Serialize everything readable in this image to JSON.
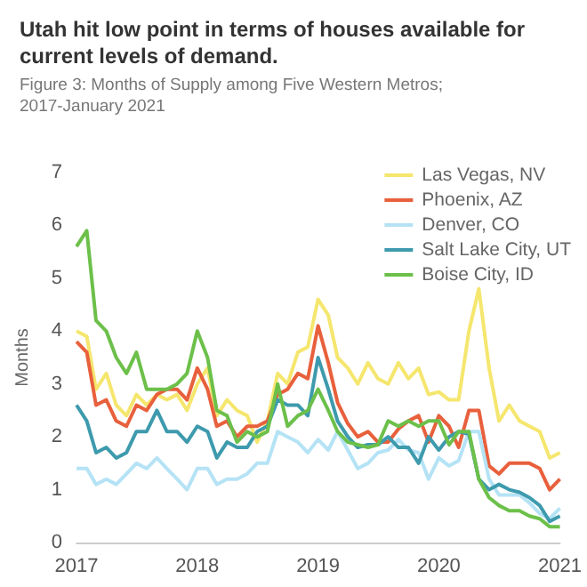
{
  "chart_data": {
    "type": "line",
    "title": "Utah hit low point in terms of houses available for current levels of demand.",
    "subtitle": "Figure 3: Months of Supply among Five Western Metros; 2017-January 2021",
    "ylabel": "Months",
    "x": [
      "2017-01",
      "2017-02",
      "2017-03",
      "2017-04",
      "2017-05",
      "2017-06",
      "2017-07",
      "2017-08",
      "2017-09",
      "2017-10",
      "2017-11",
      "2017-12",
      "2018-01",
      "2018-02",
      "2018-03",
      "2018-04",
      "2018-05",
      "2018-06",
      "2018-07",
      "2018-08",
      "2018-09",
      "2018-10",
      "2018-11",
      "2018-12",
      "2019-01",
      "2019-02",
      "2019-03",
      "2019-04",
      "2019-05",
      "2019-06",
      "2019-07",
      "2019-08",
      "2019-09",
      "2019-10",
      "2019-11",
      "2019-12",
      "2020-01",
      "2020-02",
      "2020-03",
      "2020-04",
      "2020-05",
      "2020-06",
      "2020-07",
      "2020-08",
      "2020-09",
      "2020-10",
      "2020-11",
      "2020-12",
      "2021-01"
    ],
    "series": [
      {
        "name": "Las Vegas, NV",
        "color": "#f5e66e",
        "values": [
          4.0,
          3.9,
          2.9,
          3.2,
          2.6,
          2.4,
          2.8,
          2.6,
          2.8,
          2.7,
          2.8,
          2.5,
          3.0,
          3.3,
          2.4,
          2.7,
          2.5,
          2.4,
          1.9,
          2.3,
          3.2,
          3.0,
          3.6,
          3.7,
          4.6,
          4.3,
          3.5,
          3.3,
          3.0,
          3.4,
          3.1,
          3.0,
          3.4,
          3.1,
          3.3,
          2.8,
          2.85,
          2.7,
          2.7,
          4.0,
          4.8,
          3.3,
          2.3,
          2.6,
          2.3,
          2.2,
          2.1,
          1.6,
          1.7
        ]
      },
      {
        "name": "Phoenix, AZ",
        "color": "#e8603c",
        "values": [
          3.8,
          3.6,
          2.6,
          2.7,
          2.3,
          2.2,
          2.6,
          2.5,
          2.8,
          2.9,
          2.9,
          2.7,
          3.3,
          2.9,
          2.2,
          2.3,
          2.0,
          2.2,
          2.2,
          2.3,
          2.8,
          2.9,
          3.2,
          3.1,
          4.1,
          3.4,
          2.65,
          2.25,
          2.0,
          2.1,
          1.9,
          1.9,
          2.15,
          2.3,
          2.4,
          1.9,
          2.4,
          2.2,
          1.8,
          2.5,
          2.5,
          1.45,
          1.3,
          1.5,
          1.5,
          1.5,
          1.4,
          1.0,
          1.2
        ]
      },
      {
        "name": "Denver, CO",
        "color": "#b5e3f5",
        "values": [
          1.4,
          1.4,
          1.1,
          1.2,
          1.1,
          1.3,
          1.5,
          1.4,
          1.6,
          1.4,
          1.2,
          1.0,
          1.4,
          1.4,
          1.1,
          1.2,
          1.2,
          1.3,
          1.5,
          1.5,
          2.1,
          2.0,
          1.9,
          1.7,
          1.95,
          1.75,
          2.1,
          1.75,
          1.4,
          1.5,
          1.7,
          1.75,
          1.95,
          1.75,
          1.7,
          1.2,
          1.6,
          1.45,
          1.55,
          2.1,
          2.1,
          1.2,
          0.9,
          0.9,
          0.9,
          0.75,
          0.55,
          0.45,
          0.65
        ]
      },
      {
        "name": "Salt Lake City, UT",
        "color": "#3e9aad",
        "values": [
          2.6,
          2.3,
          1.7,
          1.8,
          1.6,
          1.7,
          2.1,
          2.1,
          2.5,
          2.1,
          2.1,
          1.9,
          2.2,
          2.1,
          1.6,
          1.9,
          1.8,
          1.8,
          2.1,
          2.2,
          2.7,
          2.6,
          2.6,
          2.4,
          3.5,
          2.9,
          2.3,
          2.0,
          1.8,
          1.85,
          1.85,
          2.0,
          1.8,
          1.8,
          1.5,
          2.0,
          1.75,
          2.0,
          2.1,
          2.05,
          1.2,
          1.0,
          1.1,
          1.0,
          0.95,
          0.85,
          0.7,
          0.4,
          0.5
        ]
      },
      {
        "name": "Boise City, ID",
        "color": "#6cc04a",
        "values": [
          5.6,
          5.9,
          4.2,
          4.0,
          3.5,
          3.2,
          3.6,
          2.9,
          2.9,
          2.9,
          3.0,
          3.2,
          4.0,
          3.5,
          2.5,
          2.4,
          1.9,
          2.1,
          2.0,
          2.1,
          3.0,
          2.2,
          2.4,
          2.5,
          2.9,
          2.5,
          2.1,
          1.9,
          1.85,
          1.8,
          1.85,
          2.3,
          2.2,
          2.3,
          2.2,
          2.3,
          2.3,
          1.85,
          2.1,
          2.1,
          1.2,
          0.85,
          0.7,
          0.6,
          0.6,
          0.5,
          0.45,
          0.3,
          0.3
        ]
      }
    ],
    "xlim": [
      "2017-01",
      "2021-01"
    ],
    "xticks": [
      "2017",
      "2018",
      "2019",
      "2020",
      "2021"
    ],
    "ylim": [
      0,
      7
    ],
    "yticks": [
      0,
      1,
      2,
      3,
      4,
      5,
      6,
      7
    ],
    "grid": false,
    "legend": "top right",
    "marker": "none",
    "line_style": "solid"
  }
}
